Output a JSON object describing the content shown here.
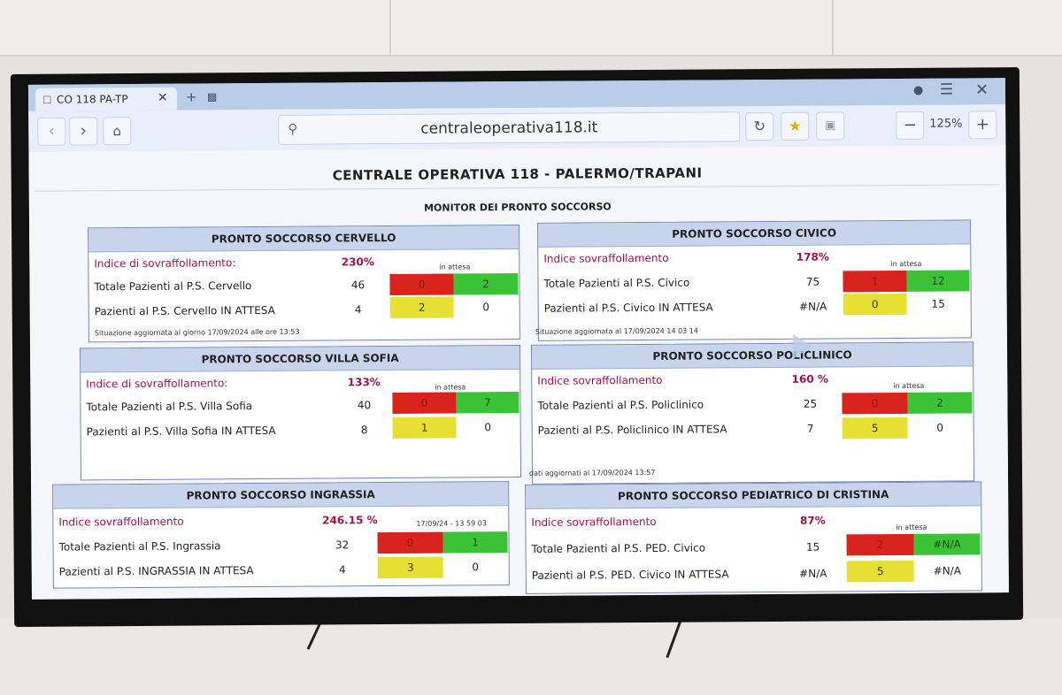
{
  "browser": {
    "tab_title": "CO 118 PA-TP",
    "url": "centraleoperativa118.it",
    "zoom": "125%"
  },
  "page": {
    "title": "CENTRALE OPERATIVA 118 - PALERMO/TRAPANI",
    "subtitle": "MONITOR DEI PRONTO SOCCORSO"
  },
  "panels": {
    "cervello": {
      "title": "PRONTO SOCCORSO CERVELLO",
      "index_label": "Indice di sovraffollamento:",
      "index_value": "230%",
      "waiting_header": "in attesa",
      "row1_label": "Totale Pazienti al P.S. Cervello",
      "row1_value": "46",
      "row1_red": "0",
      "row1_green": "2",
      "row2_label": "Pazienti al P.S. Cervello IN ATTESA",
      "row2_value": "4",
      "row2_yellow": "2",
      "row2_white": "0",
      "updated": "Situazione aggiornata al giorno 17/09/2024 alle ore 13:53"
    },
    "civico": {
      "title": "PRONTO SOCCORSO CIVICO",
      "index_label": "Indice sovraffollamento",
      "index_value": "178%",
      "waiting_header": "in attesa",
      "row1_label": "Totale Pazienti al P.S. Civico",
      "row1_value": "75",
      "row1_red": "1",
      "row1_green": "12",
      "row2_label": "Pazienti al P.S. Civico IN ATTESA",
      "row2_value": "#N/A",
      "row2_yellow": "0",
      "row2_white": "15",
      "updated": "Situazione aggiornata al 17/09/2024 14 03 14"
    },
    "villasofia": {
      "title": "PRONTO SOCCORSO VILLA SOFIA",
      "index_label": "Indice di sovraffollamento:",
      "index_value": "133%",
      "waiting_header": "in attesa",
      "row1_label": "Totale Pazienti al P.S. Villa Sofia",
      "row1_value": "40",
      "row1_red": "0",
      "row1_green": "7",
      "row2_label": "Pazienti al P.S. Villa Sofia IN ATTESA",
      "row2_value": "8",
      "row2_yellow": "1",
      "row2_white": "0"
    },
    "policlinico": {
      "title": "PRONTO SOCCORSO POLICLINICO",
      "index_label": "Indice sovraffollamento",
      "index_value": "160 %",
      "waiting_header": "in attesa",
      "row1_label": "Totale Pazienti al P.S. Policlinico",
      "row1_value": "25",
      "row1_red": "0",
      "row1_green": "2",
      "row2_label": "Pazienti al P.S. Policlinico IN ATTESA",
      "row2_value": "7",
      "row2_yellow": "5",
      "row2_white": "0",
      "updated": "dati aggiornati al 17/09/2024 13:57"
    },
    "ingrassia": {
      "title": "PRONTO SOCCORSO INGRASSIA",
      "index_label": "Indice sovraffollamento",
      "index_value": "246.15 %",
      "waiting_header": "17/09/24 - 13 59 03",
      "row1_label": "Totale Pazienti al P.S. Ingrassia",
      "row1_value": "32",
      "row1_red": "0",
      "row1_green": "1",
      "row2_label": "Pazienti al P.S. INGRASSIA IN ATTESA",
      "row2_value": "4",
      "row2_yellow": "3",
      "row2_white": "0"
    },
    "dicristina": {
      "title": "PRONTO SOCCORSO PEDIATRICO DI CRISTINA",
      "index_label": "Indice sovraffollamento",
      "index_value": "87%",
      "waiting_header": "in attesa",
      "row1_label": "Totale Pazienti al P.S. PED. Civico",
      "row1_value": "15",
      "row1_red": "2",
      "row1_green": "#N/A",
      "row2_label": "Pazienti al P.S. PED. Civico IN ATTESA",
      "row2_value": "#N/A",
      "row2_yellow": "5",
      "row2_white": "#N/A"
    }
  },
  "colors": {
    "critical": "#d8241c",
    "ok": "#3cc237",
    "warning": "#e6e034",
    "index_text": "#a0124a",
    "panel_header": "#c8d3ec"
  }
}
